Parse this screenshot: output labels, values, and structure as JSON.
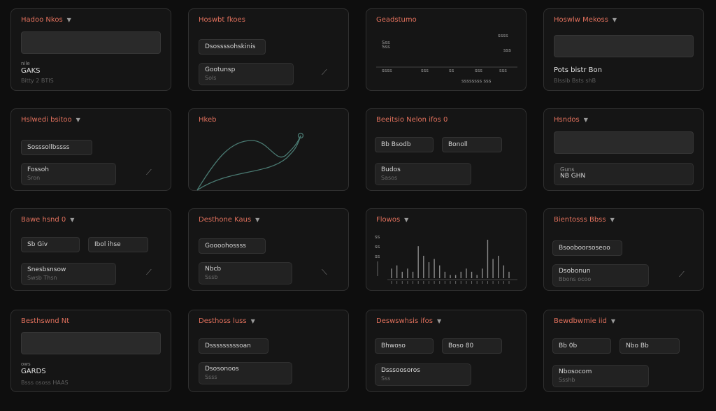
{
  "cards": [
    {
      "title": "Hadoo Nkos",
      "stat_label": "nile",
      "stat_value": "GAKS",
      "stat_sub": "Bitty 2 BTIS"
    },
    {
      "title": "Hoswbt fkoes",
      "pill": "Dsossssohskinis",
      "box_l1": "Gootunsp",
      "box_l2": "Sols"
    },
    {
      "title": "Geadstumo",
      "ticks_y": [
        "ssss",
        "sss"
      ],
      "ticks_x": [
        "ssss",
        "sss",
        "ss",
        "sss",
        "sss"
      ],
      "legend_left": "Sss",
      "footer": "ssssssss sss"
    },
    {
      "title": "Hoswlw Mekoss",
      "stat_value": "Pots bistr Bon",
      "stat_sub": "Blssib Bsts shB"
    },
    {
      "title": "Hslwedi bsitoo",
      "pill": "Sosssollbssss",
      "box_l1": "Fossoh",
      "box_l2": "Sron"
    },
    {
      "title": "Hkeb"
    },
    {
      "title": "Beeitsio Nelon ifos 0",
      "pill_a": "Bb Bsodb",
      "pill_b": "Bonoll",
      "box_l1": "Budos",
      "box_l2": "Sasos"
    },
    {
      "title": "Hsndos",
      "box_l1": "Guns",
      "box_l2": "NB GHN"
    },
    {
      "title": "Bawe hsnd 0",
      "pill_a": "Sb Giv",
      "pill_b": "Ibol ihse",
      "box_l1": "Snesbsnsow",
      "box_l2": "Swsb Thsn"
    },
    {
      "title": "Desthone Kaus",
      "pill": "Goooohossss",
      "box_l1": "Nbcb",
      "box_l2": "Sssb"
    },
    {
      "title": "Flowos",
      "ticks_y": [
        "ss",
        "ss"
      ],
      "legend_left": "ss"
    },
    {
      "title": "Bientosss Bbss",
      "pill": "Bsooboorsoseoo",
      "box_l1": "Dsobonun",
      "box_l2": "Bbons ocoo"
    },
    {
      "title": "Besthswnd Nt",
      "stat_label": "ows",
      "stat_value": "GARDS",
      "stat_sub": "Bsss ososs HAAS"
    },
    {
      "title": "Desthoss luss",
      "pill": "Dsssssssssoan",
      "box_l1": "Dsosonoos",
      "box_l2": "Ssss"
    },
    {
      "title": "Deswswhsis ifos",
      "pill_a": "Bhwoso",
      "pill_b": "Boso 80",
      "box_l1": "Dsssoosoros",
      "box_l2": "Sss"
    },
    {
      "title": "Bewdbwmie iid",
      "pill_a": "Bb 0b",
      "pill_b": "Nbo Bb",
      "box_l1": "Nbosocom",
      "box_l2": "Ssshb"
    }
  ],
  "chart_data": [
    {
      "type": "line",
      "title": "Hkeb"
    },
    {
      "type": "bar",
      "title": "Flowos",
      "values": [
        3,
        4,
        2,
        3,
        2,
        10,
        7,
        5,
        6,
        4,
        2,
        1,
        1,
        2,
        3,
        2,
        1,
        3,
        12,
        6,
        7,
        4,
        2
      ]
    }
  ]
}
